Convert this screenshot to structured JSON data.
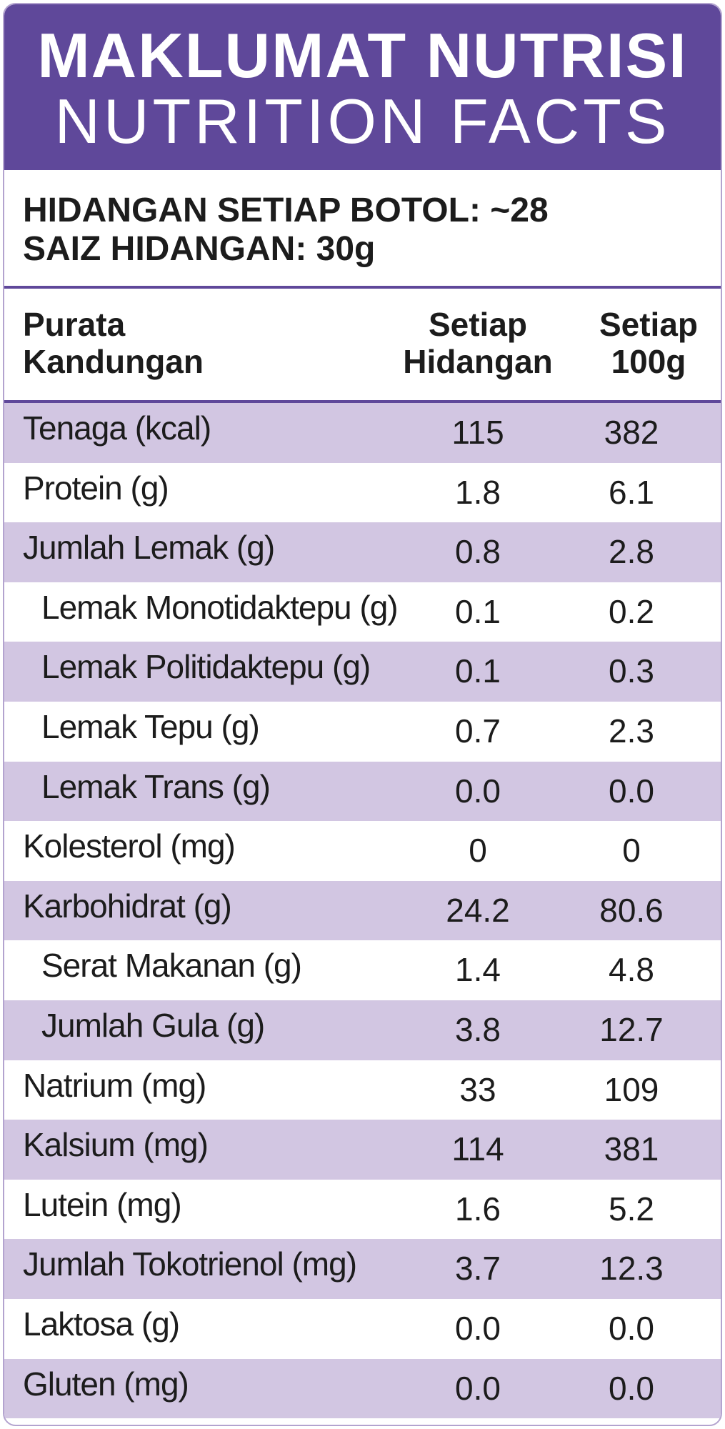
{
  "header": {
    "title_ms": "MAKLUMAT NUTRISI",
    "title_en": "NUTRITION FACTS"
  },
  "serving": {
    "per_bottle": "HIDANGAN SETIAP BOTOL: ~28",
    "size": "SAIZ HIDANGAN: 30g"
  },
  "columns": {
    "label_line1": "Purata",
    "label_line2": "Kandungan",
    "per_serving_line1": "Setiap",
    "per_serving_line2": "Hidangan",
    "per_100g_line1": "Setiap",
    "per_100g_line2": "100g"
  },
  "rows": [
    {
      "name": "Tenaga (kcal)",
      "per_serving": "115",
      "per_100g": "382"
    },
    {
      "name": "Protein (g)",
      "per_serving": "1.8",
      "per_100g": "6.1"
    },
    {
      "name": "Jumlah Lemak (g)",
      "per_serving": "0.8",
      "per_100g": "2.8"
    },
    {
      "name": "Lemak Monotidaktepu (g)",
      "per_serving": "0.1",
      "per_100g": "0.2"
    },
    {
      "name": "Lemak Politidaktepu (g)",
      "per_serving": "0.1",
      "per_100g": "0.3"
    },
    {
      "name": "Lemak Tepu (g)",
      "per_serving": "0.7",
      "per_100g": "2.3"
    },
    {
      "name": "Lemak Trans (g)",
      "per_serving": "0.0",
      "per_100g": "0.0"
    },
    {
      "name": "Kolesterol (mg)",
      "per_serving": "0",
      "per_100g": "0"
    },
    {
      "name": "Karbohidrat (g)",
      "per_serving": "24.2",
      "per_100g": "80.6"
    },
    {
      "name": "Serat Makanan (g)",
      "per_serving": "1.4",
      "per_100g": "4.8"
    },
    {
      "name": "Jumlah Gula (g)",
      "per_serving": "3.8",
      "per_100g": "12.7"
    },
    {
      "name": "Natrium (mg)",
      "per_serving": "33",
      "per_100g": "109"
    },
    {
      "name": "Kalsium (mg)",
      "per_serving": "114",
      "per_100g": "381"
    },
    {
      "name": "Lutein (mg)",
      "per_serving": "1.6",
      "per_100g": "5.2"
    },
    {
      "name": "Jumlah Tokotrienol (mg)",
      "per_serving": "3.7",
      "per_100g": "12.3"
    },
    {
      "name": "Laktosa (g)",
      "per_serving": "0.0",
      "per_100g": "0.0"
    },
    {
      "name": "Gluten (mg)",
      "per_serving": "0.0",
      "per_100g": "0.0"
    }
  ],
  "colors": {
    "header_bg": "#5f489a",
    "row_shade": "#d2c6e2",
    "text": "#1c1c1c"
  }
}
